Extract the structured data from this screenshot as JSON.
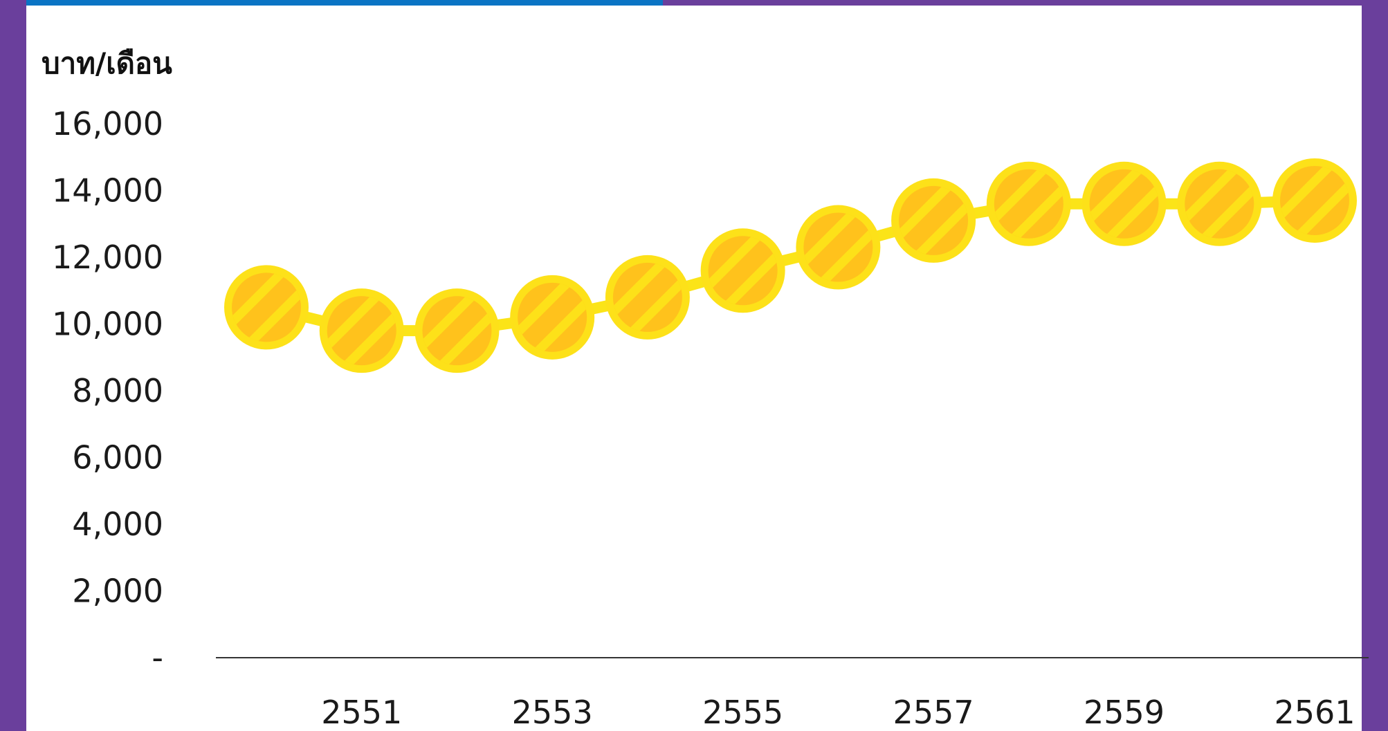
{
  "colors": {
    "frame_purple": "#6a3f9c",
    "top_bar_blue": "#0a74c4",
    "coin_yellow": "#fde119",
    "coin_orange": "#ffc21c",
    "line_yellow": "#fbe418",
    "axis_line": "#333333",
    "text": "#1a1a1a"
  },
  "chart_data": {
    "type": "line",
    "title": "",
    "xlabel": "",
    "ylabel": "บาท/เดือน",
    "marker_icon": "coin-icon",
    "grid": false,
    "legend": "none",
    "ylim": [
      0,
      16000
    ],
    "y_ticks": [
      "-",
      "2,000",
      "4,000",
      "6,000",
      "8,000",
      "10,000",
      "12,000",
      "14,000",
      "16,000"
    ],
    "x_tick_labels": [
      "2551",
      "2553",
      "2555",
      "2557",
      "2559",
      "2561"
    ],
    "x": [
      2550,
      2551,
      2552,
      2553,
      2554,
      2555,
      2556,
      2557,
      2558,
      2559,
      2560,
      2561
    ],
    "values": [
      10500,
      9800,
      9800,
      10200,
      10800,
      11600,
      12300,
      13100,
      13600,
      13600,
      13600,
      13700
    ]
  }
}
